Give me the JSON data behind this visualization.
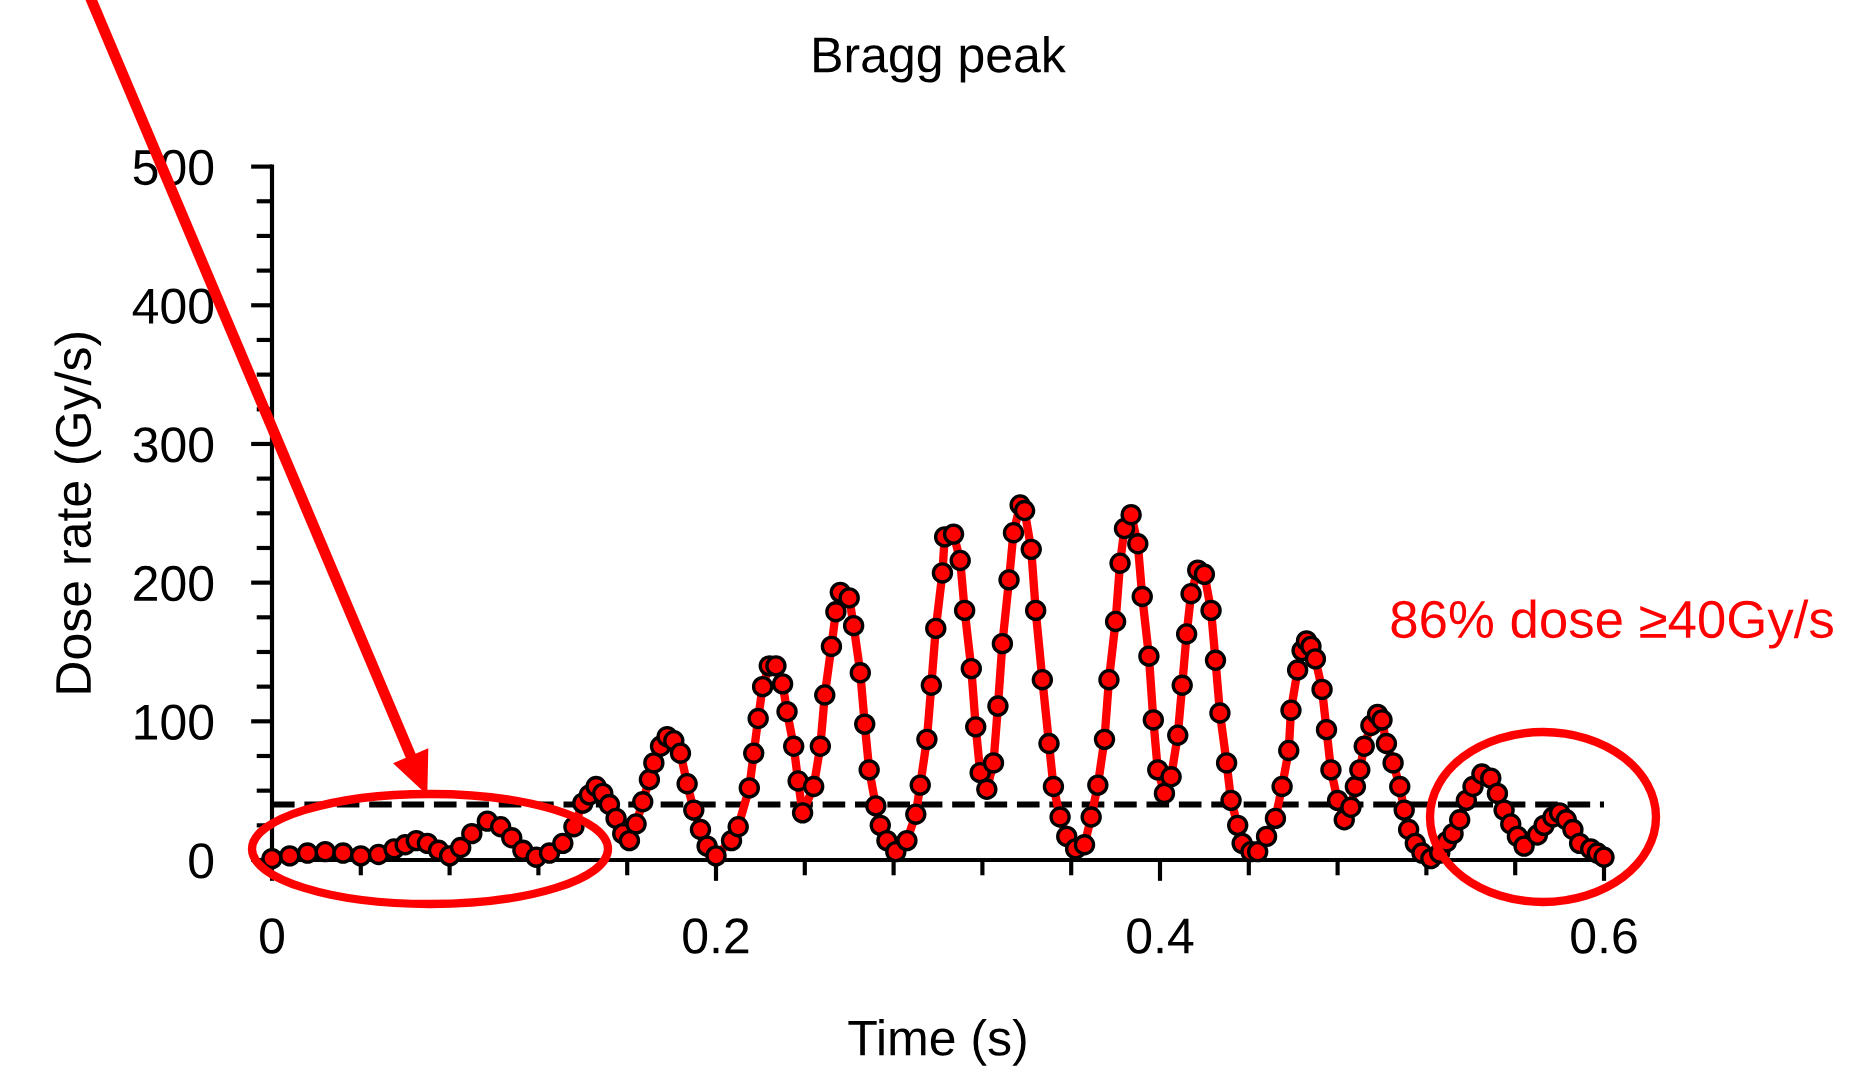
{
  "chart_data": {
    "type": "line",
    "title": "Bragg peak",
    "xlabel": "Time (s)",
    "ylabel": "Dose rate (Gy/s)",
    "annotations": [
      "86% dose ≥40Gy/s"
    ],
    "xlim": [
      0,
      0.6
    ],
    "ylim": [
      0,
      500
    ],
    "xticks": [
      0,
      {
        "value": 0.04,
        "label": null
      },
      {
        "value": 0.08,
        "label": null
      },
      {
        "value": 0.12,
        "label": null
      },
      {
        "value": 0.16,
        "label": null
      },
      0.2,
      {
        "value": 0.24,
        "label": null
      },
      {
        "value": 0.28,
        "label": null
      },
      {
        "value": 0.32,
        "label": null
      },
      {
        "value": 0.36,
        "label": null
      },
      0.4,
      {
        "value": 0.44,
        "label": null
      },
      {
        "value": 0.48,
        "label": null
      },
      {
        "value": 0.52,
        "label": null
      },
      {
        "value": 0.56,
        "label": null
      },
      0.6
    ],
    "yticks": [
      0,
      {
        "value": 25,
        "label": null
      },
      {
        "value": 50,
        "label": null
      },
      {
        "value": 75,
        "label": null
      },
      100,
      {
        "value": 125,
        "label": null
      },
      {
        "value": 150,
        "label": null
      },
      {
        "value": 175,
        "label": null
      },
      200,
      {
        "value": 225,
        "label": null
      },
      {
        "value": 250,
        "label": null
      },
      {
        "value": 275,
        "label": null
      },
      300,
      {
        "value": 325,
        "label": null
      },
      {
        "value": 350,
        "label": null
      },
      {
        "value": 375,
        "label": null
      },
      400,
      {
        "value": 425,
        "label": null
      },
      {
        "value": 450,
        "label": null
      },
      {
        "value": 475,
        "label": null
      },
      500
    ],
    "marker": "circle",
    "line_style": "solid",
    "ref_lines": [
      {
        "axis": "y",
        "value": 40,
        "color": "#000000",
        "line_style": "dashed"
      }
    ],
    "series": [
      {
        "color": "#ff0000",
        "x": [
          0,
          0.008,
          0.016,
          0.024,
          0.032,
          0.04,
          0.048,
          0.055,
          0.06,
          0.065,
          0.07,
          0.075,
          0.08,
          0.085,
          0.09,
          0.097,
          0.103,
          0.108,
          0.113,
          0.119,
          0.125,
          0.131,
          0.136,
          0.14,
          0.143,
          0.146,
          0.149,
          0.152,
          0.155,
          0.158,
          0.161,
          0.164,
          0.167,
          0.17,
          0.172,
          0.175,
          0.178,
          0.181,
          0.184,
          0.187,
          0.19,
          0.193,
          0.196,
          0.2,
          0.207,
          0.21,
          0.215,
          0.217,
          0.219,
          0.221,
          0.224,
          0.227,
          0.23,
          0.232,
          0.235,
          0.237,
          0.239,
          0.244,
          0.247,
          0.249,
          0.252,
          0.254,
          0.256,
          0.26,
          0.262,
          0.265,
          0.267,
          0.269,
          0.272,
          0.274,
          0.277,
          0.281,
          0.286,
          0.29,
          0.292,
          0.295,
          0.297,
          0.299,
          0.302,
          0.303,
          0.307,
          0.31,
          0.312,
          0.315,
          0.317,
          0.319,
          0.322,
          0.325,
          0.327,
          0.329,
          0.332,
          0.334,
          0.337,
          0.339,
          0.342,
          0.344,
          0.347,
          0.35,
          0.352,
          0.355,
          0.358,
          0.362,
          0.366,
          0.369,
          0.372,
          0.375,
          0.377,
          0.38,
          0.382,
          0.384,
          0.387,
          0.39,
          0.392,
          0.395,
          0.397,
          0.399,
          0.402,
          0.405,
          0.408,
          0.41,
          0.412,
          0.414,
          0.417,
          0.42,
          0.423,
          0.425,
          0.427,
          0.43,
          0.432,
          0.435,
          0.437,
          0.441,
          0.444,
          0.448,
          0.452,
          0.455,
          0.458,
          0.459,
          0.462,
          0.464,
          0.466,
          0.468,
          0.47,
          0.473,
          0.475,
          0.477,
          0.48,
          0.483,
          0.486,
          0.488,
          0.49,
          0.492,
          0.495,
          0.498,
          0.5,
          0.502,
          0.505,
          0.508,
          0.51,
          0.512,
          0.515,
          0.518,
          0.522,
          0.526,
          0.529,
          0.532,
          0.535,
          0.538,
          0.541,
          0.545,
          0.549,
          0.552,
          0.555,
          0.558,
          0.561,
          0.564,
          0.57,
          0.573,
          0.577,
          0.58,
          0.583,
          0.586,
          0.589,
          0.594,
          0.597,
          0.6
        ],
        "values": [
          1,
          3,
          5,
          6,
          5,
          3,
          4,
          8,
          11,
          14,
          12,
          7,
          3,
          9,
          19,
          28,
          24,
          16,
          7,
          2,
          5,
          12,
          24,
          41,
          47,
          53,
          48,
          40,
          30,
          19,
          14,
          26,
          42,
          58,
          70,
          82,
          89,
          86,
          77,
          55,
          36,
          22,
          10,
          3,
          14,
          24,
          52,
          77,
          102,
          125,
          140,
          140,
          127,
          107,
          82,
          57,
          34,
          53,
          82,
          119,
          154,
          179,
          193,
          189,
          169,
          135,
          98,
          65,
          39,
          25,
          14,
          6,
          14,
          33,
          54,
          87,
          126,
          167,
          207,
          233,
          235,
          216,
          180,
          138,
          96,
          63,
          51,
          70,
          111,
          156,
          202,
          236,
          256,
          252,
          224,
          180,
          130,
          84,
          53,
          31,
          17,
          8,
          11,
          31,
          54,
          87,
          130,
          172,
          214,
          239,
          249,
          228,
          190,
          147,
          101,
          65,
          48,
          60,
          90,
          126,
          163,
          192,
          209,
          206,
          180,
          144,
          106,
          70,
          43,
          25,
          12,
          6,
          6,
          17,
          30,
          53,
          79,
          108,
          137,
          151,
          158,
          154,
          145,
          123,
          94,
          65,
          43,
          29,
          38,
          53,
          65,
          82,
          97,
          105,
          101,
          84,
          70,
          53,
          36,
          22,
          12,
          5,
          1,
          5,
          13,
          19,
          29,
          43,
          53,
          62,
          59,
          48,
          36,
          26,
          17,
          10,
          18,
          25,
          31,
          34,
          29,
          22,
          12,
          8,
          5,
          2
        ]
      }
    ]
  }
}
